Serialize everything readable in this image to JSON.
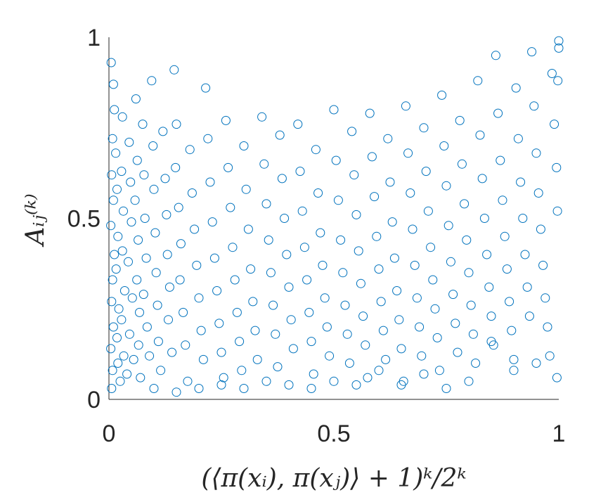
{
  "chart_data": {
    "type": "scatter",
    "title": "",
    "xlabel": "(⟨π(xᵢ), π(xⱼ)⟩ + 1)ᵏ/2ᵏ",
    "ylabel": "Aᵢⱼ⁽ᵏ⁾",
    "xlim": [
      0,
      1
    ],
    "ylim": [
      0,
      1
    ],
    "xticks": [
      0,
      0.5,
      1
    ],
    "xtick_labels": [
      "0",
      "0.5",
      "1"
    ],
    "yticks": [
      0,
      0.5,
      1
    ],
    "ytick_labels": [
      "0",
      "0.5",
      "1"
    ],
    "grid": false,
    "legend": null,
    "marker": "circle-open",
    "color": "#0072BD",
    "series": [
      {
        "points": [
          [
            0.005,
            0.93
          ],
          [
            0.01,
            0.87
          ],
          [
            0.012,
            0.8
          ],
          [
            0.008,
            0.72
          ],
          [
            0.006,
            0.62
          ],
          [
            0.01,
            0.55
          ],
          [
            0.004,
            0.48
          ],
          [
            0.012,
            0.4
          ],
          [
            0.008,
            0.33
          ],
          [
            0.006,
            0.27
          ],
          [
            0.01,
            0.2
          ],
          [
            0.004,
            0.14
          ],
          [
            0.008,
            0.08
          ],
          [
            0.006,
            0.03
          ],
          [
            0.015,
            0.68
          ],
          [
            0.018,
            0.58
          ],
          [
            0.02,
            0.45
          ],
          [
            0.016,
            0.36
          ],
          [
            0.022,
            0.25
          ],
          [
            0.018,
            0.17
          ],
          [
            0.02,
            0.1
          ],
          [
            0.025,
            0.05
          ],
          [
            0.03,
            0.78
          ],
          [
            0.028,
            0.63
          ],
          [
            0.032,
            0.52
          ],
          [
            0.03,
            0.41
          ],
          [
            0.035,
            0.3
          ],
          [
            0.028,
            0.22
          ],
          [
            0.033,
            0.12
          ],
          [
            0.04,
            0.07
          ],
          [
            0.045,
            0.71
          ],
          [
            0.048,
            0.6
          ],
          [
            0.05,
            0.49
          ],
          [
            0.043,
            0.38
          ],
          [
            0.052,
            0.28
          ],
          [
            0.046,
            0.18
          ],
          [
            0.055,
            0.11
          ],
          [
            0.06,
            0.83
          ],
          [
            0.063,
            0.66
          ],
          [
            0.058,
            0.55
          ],
          [
            0.065,
            0.44
          ],
          [
            0.062,
            0.33
          ],
          [
            0.068,
            0.24
          ],
          [
            0.066,
            0.15
          ],
          [
            0.07,
            0.06
          ],
          [
            0.075,
            0.76
          ],
          [
            0.078,
            0.62
          ],
          [
            0.08,
            0.5
          ],
          [
            0.083,
            0.39
          ],
          [
            0.077,
            0.29
          ],
          [
            0.085,
            0.2
          ],
          [
            0.09,
            0.12
          ],
          [
            0.095,
            0.88
          ],
          [
            0.098,
            0.7
          ],
          [
            0.1,
            0.58
          ],
          [
            0.103,
            0.46
          ],
          [
            0.105,
            0.35
          ],
          [
            0.108,
            0.26
          ],
          [
            0.11,
            0.16
          ],
          [
            0.115,
            0.08
          ],
          [
            0.12,
            0.74
          ],
          [
            0.125,
            0.61
          ],
          [
            0.128,
            0.51
          ],
          [
            0.13,
            0.4
          ],
          [
            0.135,
            0.31
          ],
          [
            0.132,
            0.22
          ],
          [
            0.14,
            0.13
          ],
          [
            0.145,
            0.91
          ],
          [
            0.15,
            0.76
          ],
          [
            0.148,
            0.64
          ],
          [
            0.155,
            0.53
          ],
          [
            0.16,
            0.43
          ],
          [
            0.158,
            0.33
          ],
          [
            0.165,
            0.24
          ],
          [
            0.17,
            0.15
          ],
          [
            0.175,
            0.05
          ],
          [
            0.18,
            0.69
          ],
          [
            0.185,
            0.57
          ],
          [
            0.19,
            0.47
          ],
          [
            0.195,
            0.37
          ],
          [
            0.2,
            0.28
          ],
          [
            0.205,
            0.19
          ],
          [
            0.21,
            0.11
          ],
          [
            0.215,
            0.86
          ],
          [
            0.22,
            0.72
          ],
          [
            0.225,
            0.6
          ],
          [
            0.23,
            0.49
          ],
          [
            0.235,
            0.39
          ],
          [
            0.24,
            0.3
          ],
          [
            0.245,
            0.21
          ],
          [
            0.25,
            0.13
          ],
          [
            0.255,
            0.06
          ],
          [
            0.26,
            0.77
          ],
          [
            0.265,
            0.64
          ],
          [
            0.27,
            0.53
          ],
          [
            0.275,
            0.42
          ],
          [
            0.28,
            0.33
          ],
          [
            0.285,
            0.24
          ],
          [
            0.29,
            0.16
          ],
          [
            0.295,
            0.08
          ],
          [
            0.3,
            0.7
          ],
          [
            0.305,
            0.58
          ],
          [
            0.31,
            0.47
          ],
          [
            0.315,
            0.36
          ],
          [
            0.32,
            0.27
          ],
          [
            0.325,
            0.19
          ],
          [
            0.33,
            0.11
          ],
          [
            0.34,
            0.78
          ],
          [
            0.345,
            0.65
          ],
          [
            0.35,
            0.54
          ],
          [
            0.355,
            0.44
          ],
          [
            0.36,
            0.35
          ],
          [
            0.365,
            0.26
          ],
          [
            0.37,
            0.18
          ],
          [
            0.375,
            0.09
          ],
          [
            0.38,
            0.73
          ],
          [
            0.385,
            0.61
          ],
          [
            0.39,
            0.5
          ],
          [
            0.395,
            0.4
          ],
          [
            0.4,
            0.31
          ],
          [
            0.405,
            0.22
          ],
          [
            0.41,
            0.14
          ],
          [
            0.42,
            0.76
          ],
          [
            0.425,
            0.63
          ],
          [
            0.43,
            0.52
          ],
          [
            0.435,
            0.42
          ],
          [
            0.44,
            0.33
          ],
          [
            0.445,
            0.24
          ],
          [
            0.45,
            0.16
          ],
          [
            0.455,
            0.07
          ],
          [
            0.46,
            0.69
          ],
          [
            0.465,
            0.57
          ],
          [
            0.47,
            0.46
          ],
          [
            0.475,
            0.37
          ],
          [
            0.48,
            0.28
          ],
          [
            0.485,
            0.2
          ],
          [
            0.49,
            0.12
          ],
          [
            0.5,
            0.8
          ],
          [
            0.505,
            0.66
          ],
          [
            0.51,
            0.55
          ],
          [
            0.515,
            0.44
          ],
          [
            0.52,
            0.35
          ],
          [
            0.525,
            0.26
          ],
          [
            0.53,
            0.18
          ],
          [
            0.535,
            0.1
          ],
          [
            0.54,
            0.74
          ],
          [
            0.545,
            0.62
          ],
          [
            0.55,
            0.51
          ],
          [
            0.555,
            0.41
          ],
          [
            0.56,
            0.32
          ],
          [
            0.565,
            0.23
          ],
          [
            0.57,
            0.15
          ],
          [
            0.575,
            0.06
          ],
          [
            0.58,
            0.79
          ],
          [
            0.585,
            0.67
          ],
          [
            0.59,
            0.56
          ],
          [
            0.595,
            0.45
          ],
          [
            0.6,
            0.36
          ],
          [
            0.605,
            0.27
          ],
          [
            0.61,
            0.19
          ],
          [
            0.615,
            0.11
          ],
          [
            0.62,
            0.72
          ],
          [
            0.625,
            0.6
          ],
          [
            0.63,
            0.49
          ],
          [
            0.635,
            0.39
          ],
          [
            0.64,
            0.3
          ],
          [
            0.645,
            0.22
          ],
          [
            0.65,
            0.14
          ],
          [
            0.655,
            0.05
          ],
          [
            0.66,
            0.81
          ],
          [
            0.665,
            0.68
          ],
          [
            0.67,
            0.57
          ],
          [
            0.675,
            0.47
          ],
          [
            0.68,
            0.37
          ],
          [
            0.685,
            0.28
          ],
          [
            0.69,
            0.2
          ],
          [
            0.695,
            0.12
          ],
          [
            0.7,
            0.75
          ],
          [
            0.705,
            0.63
          ],
          [
            0.71,
            0.52
          ],
          [
            0.715,
            0.42
          ],
          [
            0.72,
            0.33
          ],
          [
            0.725,
            0.25
          ],
          [
            0.73,
            0.17
          ],
          [
            0.735,
            0.08
          ],
          [
            0.74,
            0.84
          ],
          [
            0.745,
            0.7
          ],
          [
            0.75,
            0.59
          ],
          [
            0.755,
            0.48
          ],
          [
            0.76,
            0.38
          ],
          [
            0.765,
            0.29
          ],
          [
            0.77,
            0.21
          ],
          [
            0.775,
            0.13
          ],
          [
            0.78,
            0.77
          ],
          [
            0.785,
            0.65
          ],
          [
            0.79,
            0.54
          ],
          [
            0.795,
            0.44
          ],
          [
            0.8,
            0.35
          ],
          [
            0.805,
            0.26
          ],
          [
            0.81,
            0.18
          ],
          [
            0.815,
            0.1
          ],
          [
            0.82,
            0.88
          ],
          [
            0.825,
            0.73
          ],
          [
            0.83,
            0.61
          ],
          [
            0.835,
            0.5
          ],
          [
            0.84,
            0.4
          ],
          [
            0.845,
            0.31
          ],
          [
            0.85,
            0.23
          ],
          [
            0.855,
            0.15
          ],
          [
            0.86,
            0.95
          ],
          [
            0.865,
            0.79
          ],
          [
            0.87,
            0.66
          ],
          [
            0.875,
            0.55
          ],
          [
            0.88,
            0.45
          ],
          [
            0.885,
            0.36
          ],
          [
            0.89,
            0.27
          ],
          [
            0.895,
            0.19
          ],
          [
            0.9,
            0.11
          ],
          [
            0.905,
            0.86
          ],
          [
            0.91,
            0.72
          ],
          [
            0.915,
            0.6
          ],
          [
            0.92,
            0.5
          ],
          [
            0.925,
            0.4
          ],
          [
            0.93,
            0.31
          ],
          [
            0.935,
            0.23
          ],
          [
            0.94,
            0.96
          ],
          [
            0.945,
            0.81
          ],
          [
            0.95,
            0.68
          ],
          [
            0.955,
            0.57
          ],
          [
            0.96,
            0.47
          ],
          [
            0.965,
            0.37
          ],
          [
            0.97,
            0.28
          ],
          [
            0.975,
            0.2
          ],
          [
            0.98,
            0.12
          ],
          [
            0.985,
            0.9
          ],
          [
            0.99,
            0.76
          ],
          [
            0.995,
            0.64
          ],
          [
            1.0,
            0.99
          ],
          [
            1.0,
            0.97
          ],
          [
            0.998,
            0.88
          ],
          [
            0.997,
            0.52
          ],
          [
            0.996,
            0.06
          ],
          [
            0.95,
            0.1
          ],
          [
            0.9,
            0.08
          ],
          [
            0.85,
            0.16
          ],
          [
            0.8,
            0.05
          ],
          [
            0.75,
            0.03
          ],
          [
            0.7,
            0.07
          ],
          [
            0.65,
            0.04
          ],
          [
            0.6,
            0.08
          ],
          [
            0.55,
            0.04
          ],
          [
            0.5,
            0.05
          ],
          [
            0.45,
            0.03
          ],
          [
            0.4,
            0.04
          ],
          [
            0.35,
            0.05
          ],
          [
            0.3,
            0.03
          ],
          [
            0.25,
            0.04
          ],
          [
            0.2,
            0.03
          ],
          [
            0.15,
            0.02
          ],
          [
            0.1,
            0.03
          ]
        ]
      }
    ]
  }
}
